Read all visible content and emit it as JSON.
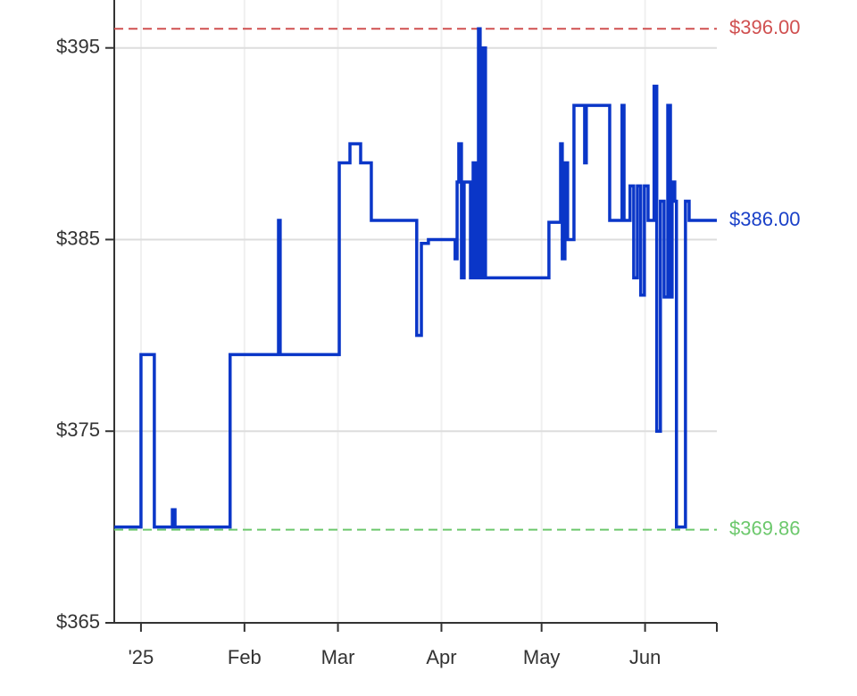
{
  "chart_data": {
    "type": "line",
    "color": "#0a36c8",
    "grid": true,
    "x": [
      -8,
      0,
      0,
      4,
      4,
      9.4,
      9.4,
      10.2,
      10.2,
      26.7,
      26.7,
      41.2,
      41.2,
      41.7,
      41.7,
      59.4,
      59.4,
      62.6,
      62.6,
      65.8,
      65.8,
      69,
      69,
      82.6,
      82.6,
      84,
      84,
      86.1,
      86.1,
      94.1,
      94.1,
      94.7,
      94.7,
      95.2,
      95.2,
      96,
      96,
      96.8,
      96.8,
      98.7,
      98.7,
      99.5,
      99.5,
      100.3,
      100.3,
      101.1,
      101.1,
      101.6,
      101.6,
      102.4,
      102.4,
      103.2,
      103.2,
      122.2,
      122.2,
      125.7,
      125.7,
      126.2,
      126.2,
      127,
      127,
      127.8,
      127.8,
      129.7,
      129.7,
      132.9,
      132.9,
      133.4,
      133.4,
      140.4,
      140.4,
      144.1,
      144.1,
      144.7,
      144.7,
      146.5,
      146.5,
      147.6,
      147.6,
      148.7,
      148.7,
      149.7,
      149.7,
      150.8,
      150.8,
      151.9,
      151.9,
      153.7,
      153.7,
      154.5,
      154.5,
      155.6,
      155.6,
      156.7,
      156.7,
      157.8,
      157.8,
      158.6,
      158.6,
      159.1,
      159.1,
      159.9,
      159.9,
      160.4,
      160.4,
      163.1,
      163.1,
      164.2,
      164.2,
      172.5
    ],
    "values": [
      370,
      370,
      379,
      379,
      370,
      370,
      370.9,
      370.9,
      370,
      370,
      379,
      379,
      386,
      386,
      379,
      379,
      389,
      389,
      390,
      390,
      389,
      389,
      386,
      386,
      380,
      380,
      384.8,
      384.8,
      385,
      385,
      384,
      384,
      388,
      388,
      390,
      390,
      383,
      383,
      388,
      388,
      383,
      383,
      389,
      389,
      383,
      383,
      396,
      396,
      383,
      383,
      395,
      395,
      383,
      383,
      385.9,
      385.9,
      390,
      390,
      384,
      384,
      389,
      389,
      385,
      385,
      392,
      392,
      389,
      389,
      392,
      392,
      386,
      386,
      392,
      392,
      386,
      386,
      387.8,
      387.8,
      383,
      383,
      387.8,
      387.8,
      382.1,
      382.1,
      387.8,
      387.8,
      386,
      386,
      393,
      393,
      375,
      375,
      387,
      387,
      382,
      382,
      392,
      392,
      382,
      382,
      388,
      388,
      387,
      387,
      370,
      370,
      387,
      387,
      386,
      386
    ],
    "xlim": [
      -8,
      172.5
    ],
    "xticks": [
      {
        "value": 0,
        "label": "'25"
      },
      {
        "value": 31,
        "label": "Feb"
      },
      {
        "value": 59,
        "label": "Mar"
      },
      {
        "value": 90,
        "label": "Apr"
      },
      {
        "value": 120,
        "label": "May"
      },
      {
        "value": 151,
        "label": "Jun"
      }
    ],
    "ylim": [
      365,
      397.5
    ],
    "yticks": [
      {
        "value": 365,
        "label": "$365"
      },
      {
        "value": 375,
        "label": "$375"
      },
      {
        "value": 385,
        "label": "$385"
      },
      {
        "value": 395,
        "label": "$395"
      }
    ],
    "reference_lines": [
      {
        "value": 396,
        "label": "$396.00",
        "color": "#d05050",
        "dashed": true
      },
      {
        "value": 386,
        "label": "$386.00",
        "color": "#1a40c8",
        "dashed": false
      },
      {
        "value": 369.86,
        "label": "$369.86",
        "color": "#6cc86c",
        "dashed": true
      }
    ]
  }
}
